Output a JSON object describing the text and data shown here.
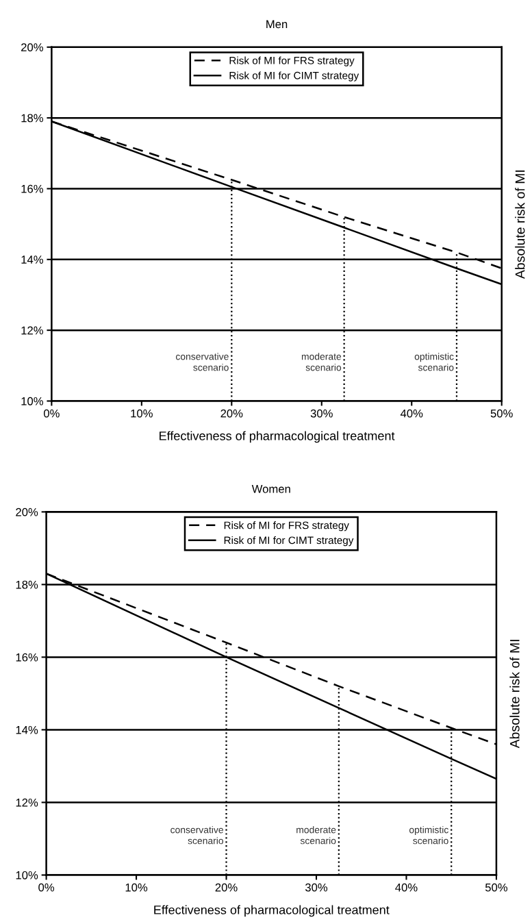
{
  "chart_data": [
    {
      "type": "line",
      "title": "Men",
      "xlabel": "Effectiveness of pharmacological treatment",
      "ylabel": "Absolute risk of MI",
      "x": [
        0,
        20,
        32.5,
        45,
        50
      ],
      "series": [
        {
          "name": "Risk of MI for FRS strategy",
          "color": "#000000",
          "line_style": "dashed",
          "values": [
            17.9,
            16.25,
            15.2,
            14.2,
            13.75
          ]
        },
        {
          "name": "Risk of MI for CIMT strategy",
          "color": "#000000",
          "line_style": "solid",
          "values": [
            17.9,
            16.05,
            14.9,
            13.75,
            13.3
          ]
        }
      ],
      "xlim": [
        0,
        50
      ],
      "ylim": [
        10,
        20
      ],
      "xticks": [
        {
          "value": 0,
          "label": "0%"
        },
        {
          "value": 10,
          "label": "10%"
        },
        {
          "value": 20,
          "label": "20%"
        },
        {
          "value": 30,
          "label": "30%"
        },
        {
          "value": 40,
          "label": "40%"
        },
        {
          "value": 50,
          "label": "50%"
        }
      ],
      "yticks": [
        {
          "value": 10,
          "label": "10%"
        },
        {
          "value": 12,
          "label": "12%"
        },
        {
          "value": 14,
          "label": "14%"
        },
        {
          "value": 16,
          "label": "16%"
        },
        {
          "value": 18,
          "label": "18%"
        },
        {
          "value": 20,
          "label": "20%"
        }
      ],
      "ref_lines": [
        {
          "axis": "x",
          "value": 20,
          "label": "conservative\nscenario",
          "line_style": "dotted"
        },
        {
          "axis": "x",
          "value": 32.5,
          "label": "moderate\nscenario",
          "line_style": "dotted"
        },
        {
          "axis": "x",
          "value": 45,
          "label": "optimistic\nscenario",
          "line_style": "dotted"
        }
      ],
      "grid": "y",
      "legend": "top",
      "marker": "none"
    },
    {
      "type": "line",
      "title": "Women",
      "xlabel": "Effectiveness of pharmacological treatment",
      "ylabel": "Absolute risk of MI",
      "x": [
        0,
        20,
        32.5,
        45,
        50
      ],
      "series": [
        {
          "name": "Risk of MI for FRS strategy",
          "color": "#000000",
          "line_style": "dashed",
          "values": [
            18.3,
            16.4,
            15.2,
            14.05,
            13.6
          ]
        },
        {
          "name": "Risk of MI for CIMT strategy",
          "color": "#000000",
          "line_style": "solid",
          "values": [
            18.3,
            16.0,
            14.6,
            13.2,
            12.65
          ]
        }
      ],
      "xlim": [
        0,
        50
      ],
      "ylim": [
        10,
        20
      ],
      "xticks": [
        {
          "value": 0,
          "label": "0%"
        },
        {
          "value": 10,
          "label": "10%"
        },
        {
          "value": 20,
          "label": "20%"
        },
        {
          "value": 30,
          "label": "30%"
        },
        {
          "value": 40,
          "label": "40%"
        },
        {
          "value": 50,
          "label": "50%"
        }
      ],
      "yticks": [
        {
          "value": 10,
          "label": "10%"
        },
        {
          "value": 12,
          "label": "12%"
        },
        {
          "value": 14,
          "label": "14%"
        },
        {
          "value": 16,
          "label": "16%"
        },
        {
          "value": 18,
          "label": "18%"
        },
        {
          "value": 20,
          "label": "20%"
        }
      ],
      "ref_lines": [
        {
          "axis": "x",
          "value": 20,
          "label": "conservative\nscenario",
          "line_style": "dotted"
        },
        {
          "axis": "x",
          "value": 32.5,
          "label": "moderate\nscenario",
          "line_style": "dotted"
        },
        {
          "axis": "x",
          "value": 45,
          "label": "optimistic\nscenario",
          "line_style": "dotted"
        }
      ],
      "grid": "y",
      "legend": "top",
      "marker": "none"
    }
  ]
}
